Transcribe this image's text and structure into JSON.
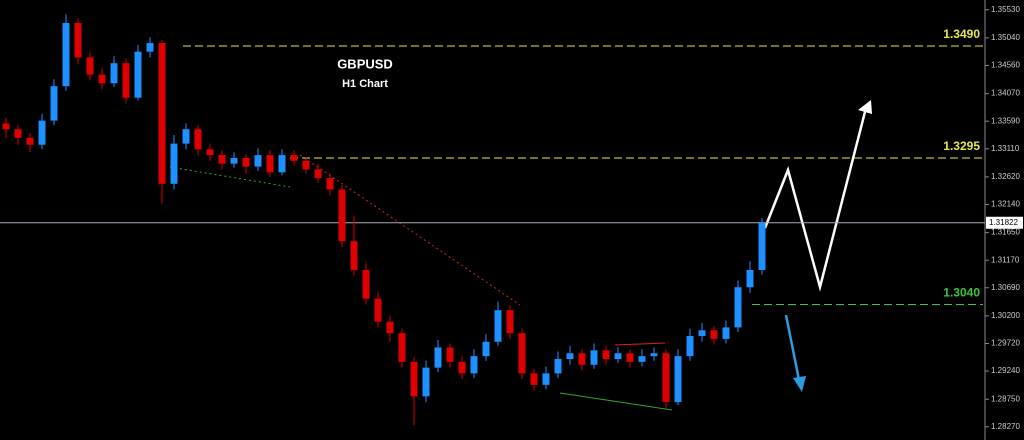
{
  "chart_data": {
    "type": "candlestick",
    "title": "GBPUSD",
    "subtitle": "H1 Chart",
    "open": [
      1.3355,
      1.3345,
      1.333,
      1.3318,
      1.336,
      1.342,
      1.353,
      1.347,
      1.344,
      1.3425,
      1.346,
      1.34,
      1.348,
      1.3495,
      1.325,
      1.332,
      1.3345,
      1.331,
      1.33,
      1.3285,
      1.3295,
      1.328,
      1.33,
      1.327,
      1.33,
      1.329,
      1.3275,
      1.326,
      1.324,
      1.315,
      1.31,
      1.305,
      1.301,
      1.299,
      1.294,
      1.288,
      1.293,
      1.2965,
      1.294,
      1.292,
      1.295,
      1.2975,
      1.303,
      1.299,
      1.292,
      1.29,
      1.292,
      1.2945,
      1.2955,
      1.2935,
      1.296,
      1.2945,
      1.2955,
      1.294,
      1.295,
      1.2955,
      1.287,
      1.295,
      1.2985,
      1.2995,
      1.298,
      1.3,
      1.307,
      1.31
    ],
    "high": [
      1.3365,
      1.3352,
      1.3338,
      1.3372,
      1.3432,
      1.3545,
      1.3538,
      1.348,
      1.3452,
      1.3472,
      1.3468,
      1.3492,
      1.3505,
      1.35,
      1.3335,
      1.3355,
      1.3352,
      1.332,
      1.3308,
      1.3305,
      1.3302,
      1.3312,
      1.3308,
      1.331,
      1.3308,
      1.3296,
      1.3285,
      1.3268,
      1.3248,
      1.3195,
      1.3112,
      1.3062,
      1.302,
      1.2998,
      1.2948,
      1.2942,
      1.2978,
      1.2972,
      1.295,
      1.2962,
      1.2988,
      1.3045,
      1.3038,
      1.2998,
      1.2928,
      1.2932,
      1.2958,
      1.2968,
      1.2962,
      1.2972,
      1.2968,
      1.2966,
      1.2962,
      1.2962,
      1.2965,
      1.2962,
      1.2962,
      1.2998,
      1.3008,
      1.3002,
      1.3012,
      1.3082,
      1.3115,
      1.319
    ],
    "low": [
      1.333,
      1.3318,
      1.3305,
      1.331,
      1.3352,
      1.3412,
      1.3458,
      1.343,
      1.3415,
      1.3418,
      1.339,
      1.3395,
      1.347,
      1.3215,
      1.324,
      1.331,
      1.33,
      1.329,
      1.3275,
      1.3278,
      1.3268,
      1.3272,
      1.3262,
      1.3265,
      1.3282,
      1.3268,
      1.3252,
      1.323,
      1.314,
      1.309,
      1.304,
      1.3,
      1.2975,
      1.293,
      1.283,
      1.287,
      1.2922,
      1.293,
      1.291,
      1.2912,
      1.2942,
      1.2968,
      1.298,
      1.291,
      1.289,
      1.2892,
      1.2912,
      1.2935,
      1.2925,
      1.2928,
      1.2935,
      1.2938,
      1.293,
      1.2932,
      1.2942,
      1.286,
      1.2865,
      1.2942,
      1.2975,
      1.297,
      1.2972,
      1.2992,
      1.306,
      1.3092
    ],
    "close": [
      1.3345,
      1.333,
      1.3318,
      1.336,
      1.342,
      1.353,
      1.347,
      1.344,
      1.3425,
      1.346,
      1.34,
      1.348,
      1.3495,
      1.325,
      1.332,
      1.3345,
      1.331,
      1.33,
      1.3285,
      1.3295,
      1.328,
      1.33,
      1.327,
      1.33,
      1.329,
      1.3275,
      1.326,
      1.324,
      1.315,
      1.31,
      1.305,
      1.301,
      1.299,
      1.294,
      1.288,
      1.293,
      1.2965,
      1.294,
      1.292,
      1.295,
      1.2975,
      1.303,
      1.299,
      1.292,
      1.29,
      1.292,
      1.2945,
      1.2955,
      1.2935,
      1.296,
      1.2945,
      1.2955,
      1.294,
      1.295,
      1.2955,
      1.287,
      1.295,
      1.2985,
      1.2995,
      1.298,
      1.3,
      1.307,
      1.31,
      1.3182
    ],
    "up_color": "#1e90ff",
    "down_color": "#e00000",
    "ylim": [
      1.2804,
      1.357
    ],
    "yticks": [
      {
        "value": 1.3553,
        "label": "1.35530"
      },
      {
        "value": 1.3504,
        "label": "1.35040"
      },
      {
        "value": 1.3456,
        "label": "1.34560"
      },
      {
        "value": 1.3407,
        "label": "1.34070"
      },
      {
        "value": 1.3359,
        "label": "1.33590"
      },
      {
        "value": 1.3311,
        "label": "1.33110"
      },
      {
        "value": 1.3262,
        "label": "1.32620"
      },
      {
        "value": 1.3214,
        "label": "1.32140"
      },
      {
        "value": 1.3165,
        "label": "1.31650"
      },
      {
        "value": 1.3117,
        "label": "1.31170"
      },
      {
        "value": 1.3069,
        "label": "1.30690"
      },
      {
        "value": 1.302,
        "label": "1.30200"
      },
      {
        "value": 1.2972,
        "label": "1.29720"
      },
      {
        "value": 1.2924,
        "label": "1.29240"
      },
      {
        "value": 1.2875,
        "label": "1.28750"
      },
      {
        "value": 1.2827,
        "label": "1.28270"
      }
    ],
    "levels": [
      {
        "value": 1.349,
        "label": "1.3490",
        "color": "#e8e84a"
      },
      {
        "value": 1.3295,
        "label": "1.3295",
        "color": "#e8e84a"
      },
      {
        "value": 1.304,
        "label": "1.3040",
        "color": "#3cc83c"
      }
    ],
    "last_price": 1.31822
  }
}
